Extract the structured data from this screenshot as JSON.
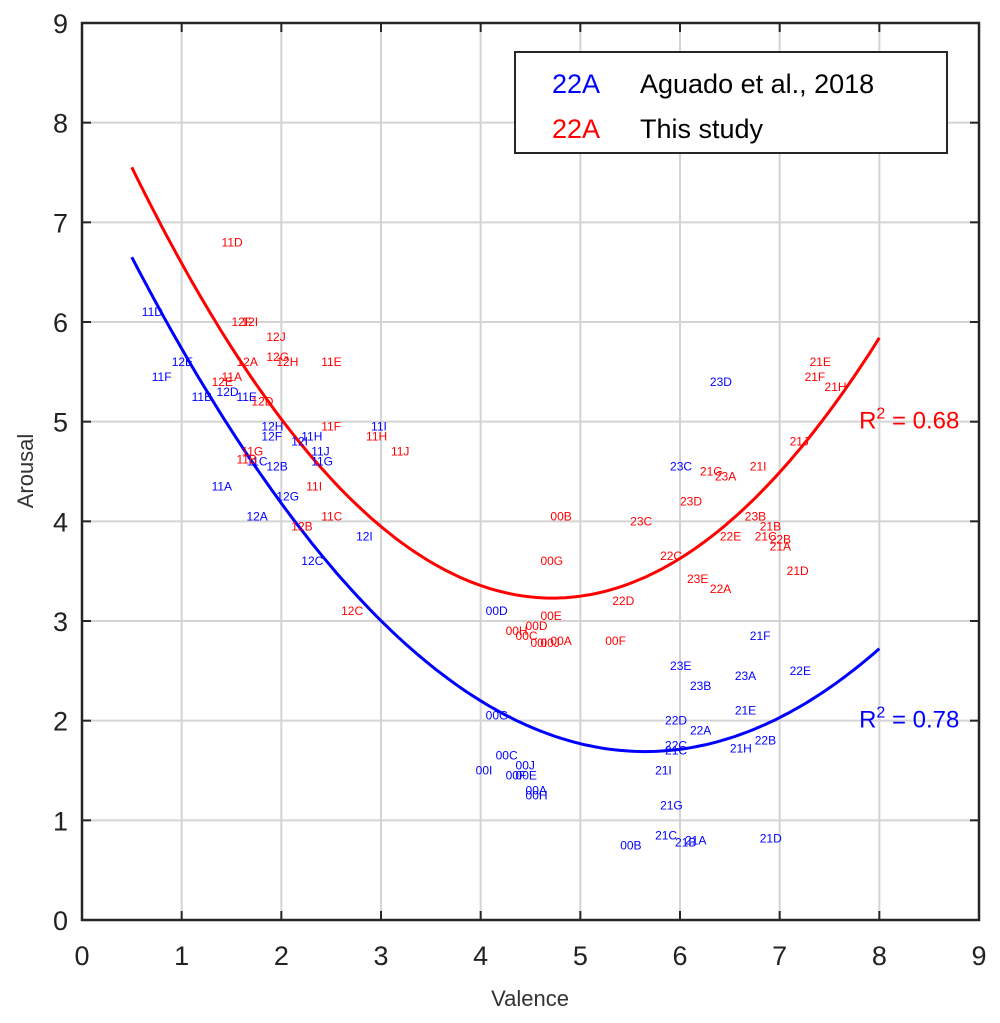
{
  "chart_data": {
    "type": "scatter",
    "xlabel": "Valence",
    "ylabel": "Arousal",
    "xlim": [
      0,
      9
    ],
    "ylim": [
      0,
      9
    ],
    "xticks": [
      "0",
      "1",
      "2",
      "3",
      "4",
      "5",
      "6",
      "7",
      "8",
      "9"
    ],
    "yticks": [
      "0",
      "1",
      "2",
      "3",
      "4",
      "5",
      "6",
      "7",
      "8",
      "9"
    ],
    "grid": true,
    "legend": {
      "placement": "top-right",
      "entries": [
        {
          "marker": "22A",
          "label": "Aguado et al., 2018",
          "color": "#0000ff"
        },
        {
          "marker": "22A",
          "label": "This study",
          "color": "#ff0000"
        }
      ]
    },
    "series": [
      {
        "name": "Aguado et al., 2018",
        "color": "#0000ff",
        "fit": {
          "x_range": [
            0.5,
            8
          ],
          "vertex_x": 5.65,
          "vertex_y": 1.69,
          "a": 0.187
        },
        "r2_label": "R",
        "r2_sup": "2",
        "r2_value": " = 0.78",
        "r2_pos": [
          8.3,
          1.93
        ],
        "points": [
          {
            "label": "11D",
            "x": 0.6,
            "y": 6.1
          },
          {
            "label": "12E",
            "x": 0.9,
            "y": 5.6
          },
          {
            "label": "11F",
            "x": 0.7,
            "y": 5.45
          },
          {
            "label": "11B",
            "x": 1.1,
            "y": 5.25
          },
          {
            "label": "12D",
            "x": 1.35,
            "y": 5.3
          },
          {
            "label": "11E",
            "x": 1.55,
            "y": 5.25
          },
          {
            "label": "12H",
            "x": 1.8,
            "y": 4.95
          },
          {
            "label": "12F",
            "x": 1.8,
            "y": 4.85
          },
          {
            "label": "11H",
            "x": 2.2,
            "y": 4.85
          },
          {
            "label": "12I",
            "x": 2.1,
            "y": 4.8
          },
          {
            "label": "11I",
            "x": 2.9,
            "y": 4.95
          },
          {
            "label": "11J",
            "x": 2.3,
            "y": 4.7
          },
          {
            "label": "11C",
            "x": 1.65,
            "y": 4.6
          },
          {
            "label": "12B",
            "x": 1.85,
            "y": 4.55
          },
          {
            "label": "11G",
            "x": 2.3,
            "y": 4.6
          },
          {
            "label": "11A",
            "x": 1.3,
            "y": 4.35
          },
          {
            "label": "12G",
            "x": 1.95,
            "y": 4.25
          },
          {
            "label": "12A",
            "x": 1.65,
            "y": 4.05
          },
          {
            "label": "12I",
            "x": 2.75,
            "y": 3.85
          },
          {
            "label": "12C",
            "x": 2.2,
            "y": 3.6
          },
          {
            "label": "00D",
            "x": 4.05,
            "y": 3.1
          },
          {
            "label": "00G",
            "x": 4.05,
            "y": 2.05
          },
          {
            "label": "00C",
            "x": 4.15,
            "y": 1.65
          },
          {
            "label": "00J",
            "x": 4.35,
            "y": 1.55
          },
          {
            "label": "00I",
            "x": 3.95,
            "y": 1.5
          },
          {
            "label": "00F",
            "x": 4.25,
            "y": 1.45
          },
          {
            "label": "00E",
            "x": 4.35,
            "y": 1.45
          },
          {
            "label": "00A",
            "x": 4.45,
            "y": 1.3
          },
          {
            "label": "00H",
            "x": 4.45,
            "y": 1.25
          },
          {
            "label": "00B",
            "x": 5.4,
            "y": 0.75
          },
          {
            "label": "23D",
            "x": 6.3,
            "y": 5.4
          },
          {
            "label": "23C",
            "x": 5.9,
            "y": 4.55
          },
          {
            "label": "21F",
            "x": 6.7,
            "y": 2.85
          },
          {
            "label": "23E",
            "x": 5.9,
            "y": 2.55
          },
          {
            "label": "23A",
            "x": 6.55,
            "y": 2.45
          },
          {
            "label": "22E",
            "x": 7.1,
            "y": 2.5
          },
          {
            "label": "23B",
            "x": 6.1,
            "y": 2.35
          },
          {
            "label": "21E",
            "x": 6.55,
            "y": 2.1
          },
          {
            "label": "22D",
            "x": 5.85,
            "y": 2.0
          },
          {
            "label": "22A",
            "x": 6.1,
            "y": 1.9
          },
          {
            "label": "22B",
            "x": 6.75,
            "y": 1.8
          },
          {
            "label": "21H",
            "x": 6.5,
            "y": 1.72
          },
          {
            "label": "22C",
            "x": 5.85,
            "y": 1.75
          },
          {
            "label": "21C",
            "x": 5.85,
            "y": 1.7
          },
          {
            "label": "21I",
            "x": 5.75,
            "y": 1.5
          },
          {
            "label": "21G",
            "x": 5.8,
            "y": 1.15
          },
          {
            "label": "21C",
            "x": 5.75,
            "y": 0.85
          },
          {
            "label": "21B",
            "x": 5.95,
            "y": 0.78
          },
          {
            "label": "21A",
            "x": 6.05,
            "y": 0.8
          },
          {
            "label": "21D",
            "x": 6.8,
            "y": 0.82
          }
        ]
      },
      {
        "name": "This study",
        "color": "#ff0000",
        "fit": {
          "x_range": [
            0.5,
            8
          ],
          "vertex_x": 4.72,
          "vertex_y": 3.23,
          "a": 0.2427
        },
        "r2_label": "R",
        "r2_sup": "2",
        "r2_value": " = 0.68",
        "r2_pos": [
          8.3,
          4.93
        ],
        "points": [
          {
            "label": "11D",
            "x": 1.4,
            "y": 6.8
          },
          {
            "label": "12F",
            "x": 1.5,
            "y": 6.0
          },
          {
            "label": "12I",
            "x": 1.6,
            "y": 6.0
          },
          {
            "label": "12J",
            "x": 1.85,
            "y": 5.85
          },
          {
            "label": "12G",
            "x": 1.85,
            "y": 5.65
          },
          {
            "label": "12A",
            "x": 1.55,
            "y": 5.6
          },
          {
            "label": "12H",
            "x": 1.95,
            "y": 5.6
          },
          {
            "label": "11E",
            "x": 2.4,
            "y": 5.6
          },
          {
            "label": "11A",
            "x": 1.4,
            "y": 5.45
          },
          {
            "label": "12E",
            "x": 1.3,
            "y": 5.4
          },
          {
            "label": "12D",
            "x": 1.7,
            "y": 5.2
          },
          {
            "label": "11F",
            "x": 2.4,
            "y": 4.95
          },
          {
            "label": "11H",
            "x": 2.85,
            "y": 4.85
          },
          {
            "label": "11J",
            "x": 3.1,
            "y": 4.7
          },
          {
            "label": "11G",
            "x": 1.6,
            "y": 4.7
          },
          {
            "label": "11B",
            "x": 1.55,
            "y": 4.62
          },
          {
            "label": "11I",
            "x": 2.25,
            "y": 4.35
          },
          {
            "label": "11C",
            "x": 2.4,
            "y": 4.05
          },
          {
            "label": "12B",
            "x": 2.1,
            "y": 3.95
          },
          {
            "label": "12C",
            "x": 2.6,
            "y": 3.1
          },
          {
            "label": "00B",
            "x": 4.7,
            "y": 4.05
          },
          {
            "label": "00G",
            "x": 4.6,
            "y": 3.6
          },
          {
            "label": "00E",
            "x": 4.6,
            "y": 3.05
          },
          {
            "label": "00H",
            "x": 4.25,
            "y": 2.9
          },
          {
            "label": "00D",
            "x": 4.45,
            "y": 2.95
          },
          {
            "label": "00C",
            "x": 4.35,
            "y": 2.85
          },
          {
            "label": "00A",
            "x": 4.7,
            "y": 2.8
          },
          {
            "label": "00I",
            "x": 4.5,
            "y": 2.78
          },
          {
            "label": "00J",
            "x": 4.6,
            "y": 2.78
          },
          {
            "label": "00F",
            "x": 5.25,
            "y": 2.8
          },
          {
            "label": "23C",
            "x": 5.5,
            "y": 4.0
          },
          {
            "label": "21G",
            "x": 6.2,
            "y": 4.5
          },
          {
            "label": "23A",
            "x": 6.35,
            "y": 4.45
          },
          {
            "label": "21I",
            "x": 6.7,
            "y": 4.55
          },
          {
            "label": "23D",
            "x": 6.0,
            "y": 4.2
          },
          {
            "label": "21E",
            "x": 7.3,
            "y": 5.6
          },
          {
            "label": "21F",
            "x": 7.25,
            "y": 5.45
          },
          {
            "label": "21H",
            "x": 7.45,
            "y": 5.35
          },
          {
            "label": "21J",
            "x": 7.1,
            "y": 4.8
          },
          {
            "label": "23B",
            "x": 6.65,
            "y": 4.05
          },
          {
            "label": "21B",
            "x": 6.8,
            "y": 3.95
          },
          {
            "label": "22E",
            "x": 6.4,
            "y": 3.85
          },
          {
            "label": "21C",
            "x": 6.75,
            "y": 3.85
          },
          {
            "label": "22B",
            "x": 6.9,
            "y": 3.82
          },
          {
            "label": "21A",
            "x": 6.9,
            "y": 3.75
          },
          {
            "label": "22C",
            "x": 5.8,
            "y": 3.65
          },
          {
            "label": "21D",
            "x": 7.07,
            "y": 3.5
          },
          {
            "label": "23E",
            "x": 6.07,
            "y": 3.42
          },
          {
            "label": "22A",
            "x": 6.3,
            "y": 3.32
          },
          {
            "label": "22D",
            "x": 5.32,
            "y": 3.2
          }
        ]
      }
    ]
  }
}
